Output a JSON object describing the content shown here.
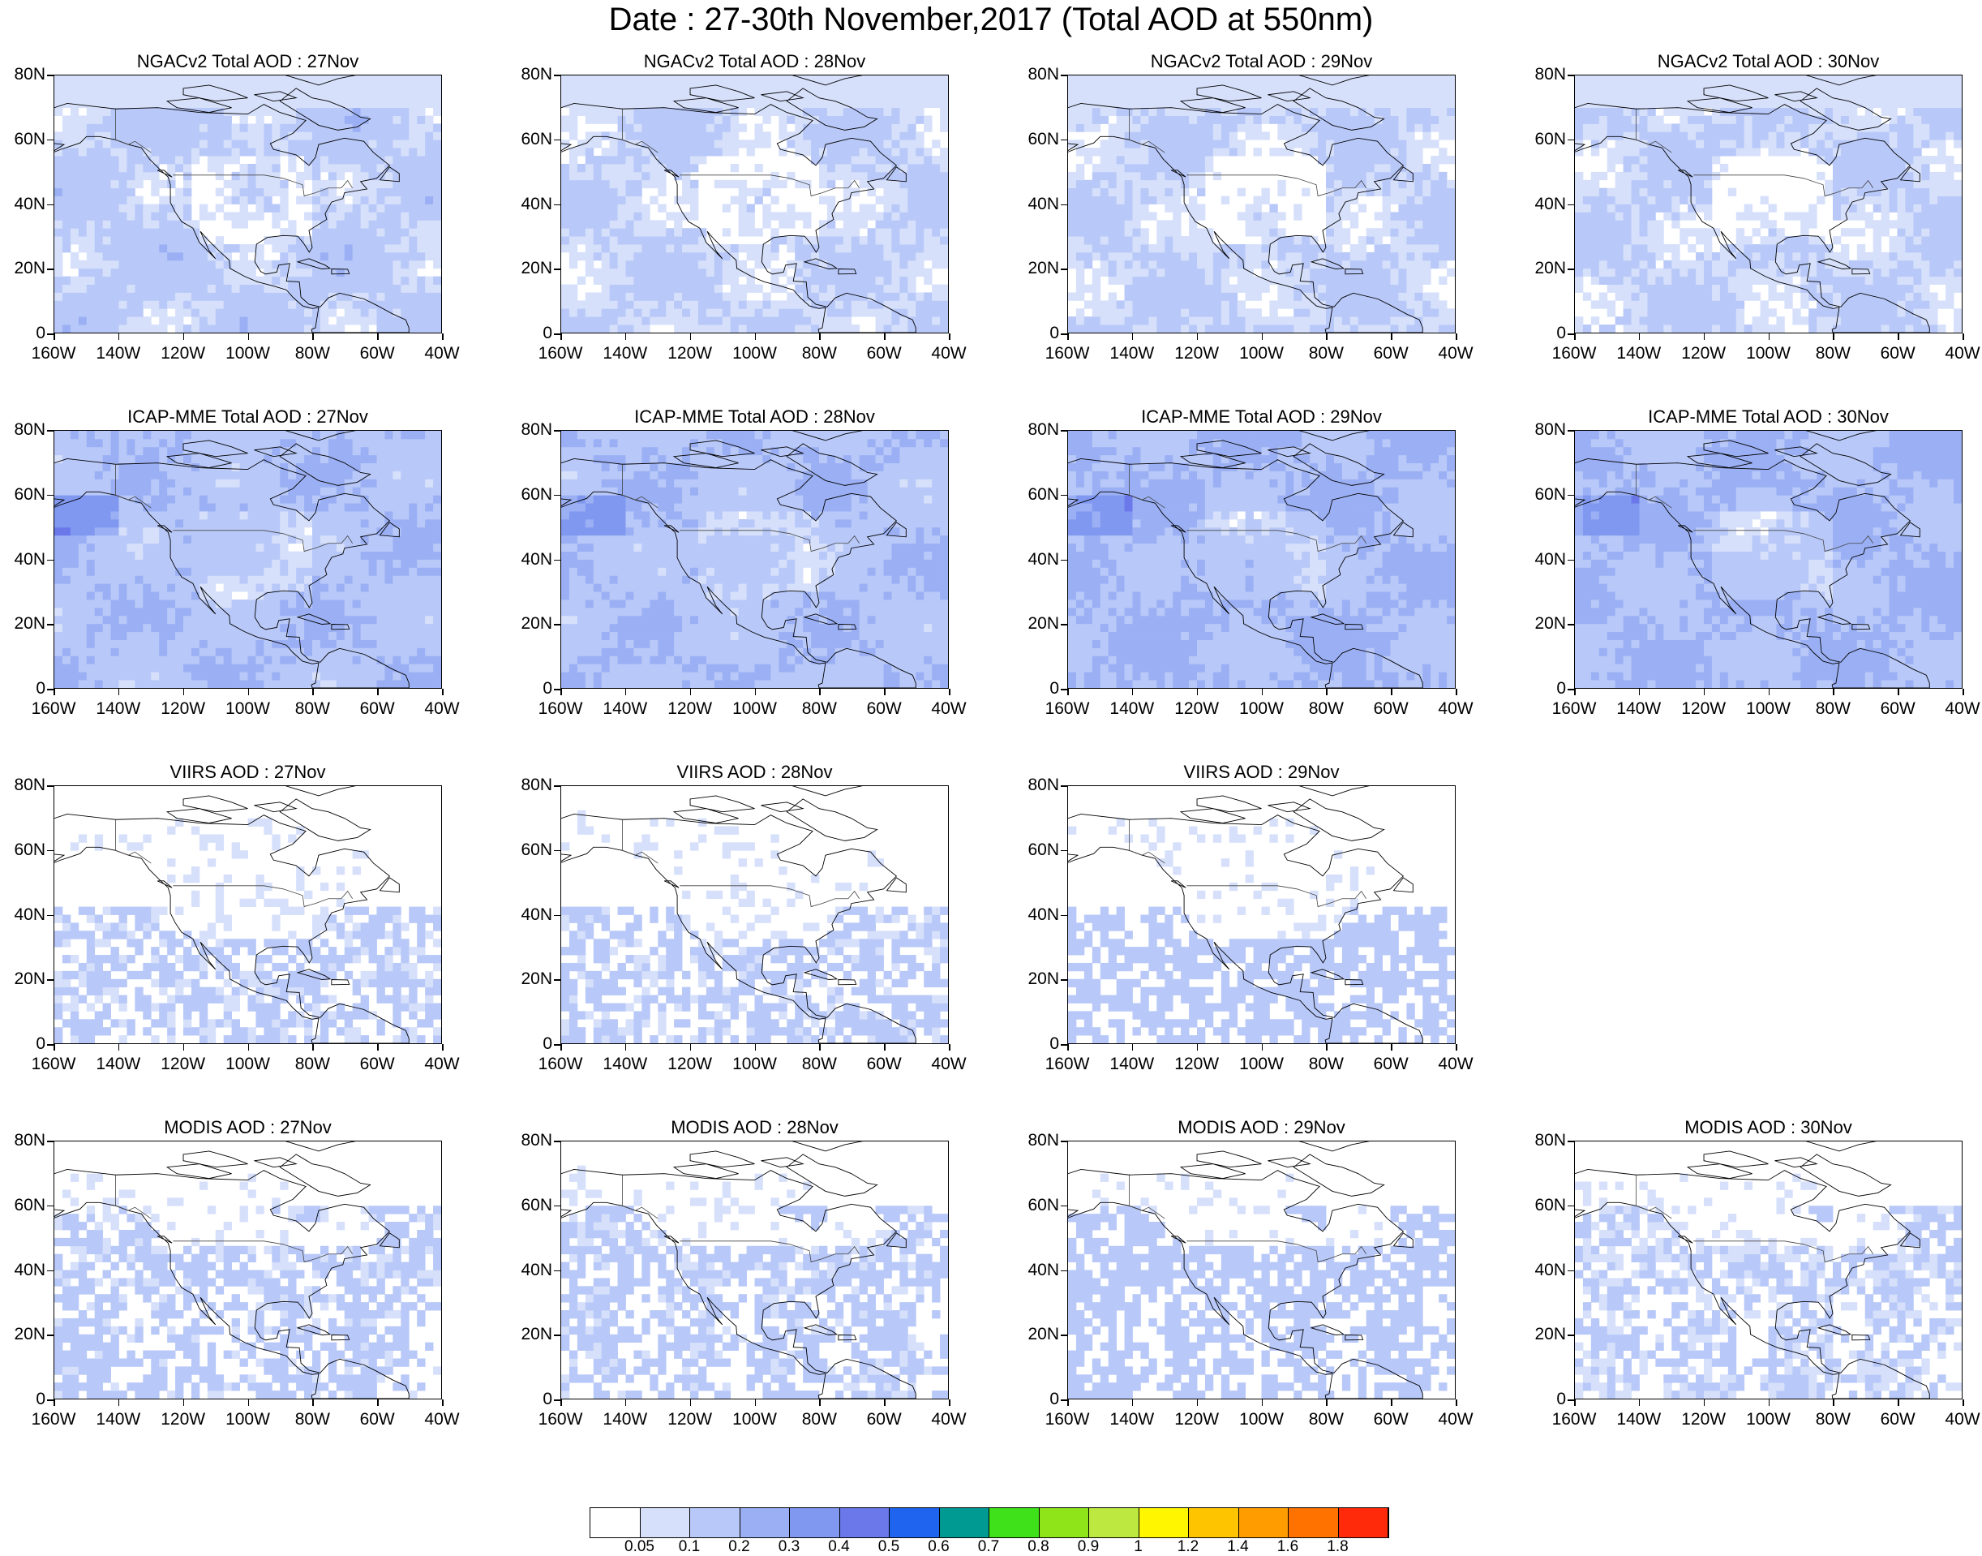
{
  "title": "Date : 27-30th November,2017 (Total AOD at 550nm)",
  "axes": {
    "x_labels": [
      "160W",
      "140W",
      "120W",
      "100W",
      "80W",
      "60W",
      "40W"
    ],
    "y_labels": [
      "80N",
      "60N",
      "40N",
      "20N",
      "0"
    ]
  },
  "rows": [
    {
      "name": "NGACv2",
      "panels": [
        {
          "title": "NGACv2 Total AOD : 27Nov",
          "present": true,
          "coverage": "full",
          "level": 0.12
        },
        {
          "title": "NGACv2 Total AOD : 28Nov",
          "present": true,
          "coverage": "full",
          "level": 0.1
        },
        {
          "title": "NGACv2 Total AOD : 29Nov",
          "present": true,
          "coverage": "full",
          "level": 0.1
        },
        {
          "title": "NGACv2 Total AOD : 30Nov",
          "present": true,
          "coverage": "full",
          "level": 0.1
        }
      ]
    },
    {
      "name": "ICAP-MME",
      "panels": [
        {
          "title": "ICAP-MME Total AOD : 27Nov",
          "present": true,
          "coverage": "full",
          "level": 0.18
        },
        {
          "title": "ICAP-MME Total AOD : 28Nov",
          "present": true,
          "coverage": "full",
          "level": 0.18
        },
        {
          "title": "ICAP-MME Total AOD : 29Nov",
          "present": true,
          "coverage": "full",
          "level": 0.2
        },
        {
          "title": "ICAP-MME Total AOD : 30Nov",
          "present": true,
          "coverage": "full",
          "level": 0.2
        }
      ]
    },
    {
      "name": "VIIRS",
      "panels": [
        {
          "title": "VIIRS AOD : 27Nov",
          "present": true,
          "coverage": "sparse-south",
          "level": 0.08
        },
        {
          "title": "VIIRS AOD : 28Nov",
          "present": true,
          "coverage": "sparse-south",
          "level": 0.08
        },
        {
          "title": "VIIRS AOD : 29Nov",
          "present": true,
          "coverage": "sparse-south",
          "level": 0.1
        },
        {
          "title": "",
          "present": false
        }
      ]
    },
    {
      "name": "MODIS",
      "panels": [
        {
          "title": "MODIS AOD : 27Nov",
          "present": true,
          "coverage": "patchy",
          "level": 0.12
        },
        {
          "title": "MODIS AOD : 28Nov",
          "present": true,
          "coverage": "patchy",
          "level": 0.12
        },
        {
          "title": "MODIS AOD : 29Nov",
          "present": true,
          "coverage": "patchy",
          "level": 0.14
        },
        {
          "title": "MODIS AOD : 30Nov",
          "present": true,
          "coverage": "patchy",
          "level": 0.1
        }
      ]
    }
  ],
  "colorbar": {
    "labels": [
      "0.05",
      "0.1",
      "0.2",
      "0.3",
      "0.4",
      "0.5",
      "0.6",
      "0.7",
      "0.8",
      "0.9",
      "1",
      "1.2",
      "1.4",
      "1.6",
      "1.8"
    ],
    "colors": [
      "#ffffff",
      "#d6e0fb",
      "#b8c8f8",
      "#9bb0f4",
      "#8098f0",
      "#6a78ea",
      "#1f64ef",
      "#009a93",
      "#3fe21a",
      "#8ee419",
      "#bde83f",
      "#fff600",
      "#ffc400",
      "#ff9c00",
      "#ff7200",
      "#ff2a0a"
    ]
  }
}
